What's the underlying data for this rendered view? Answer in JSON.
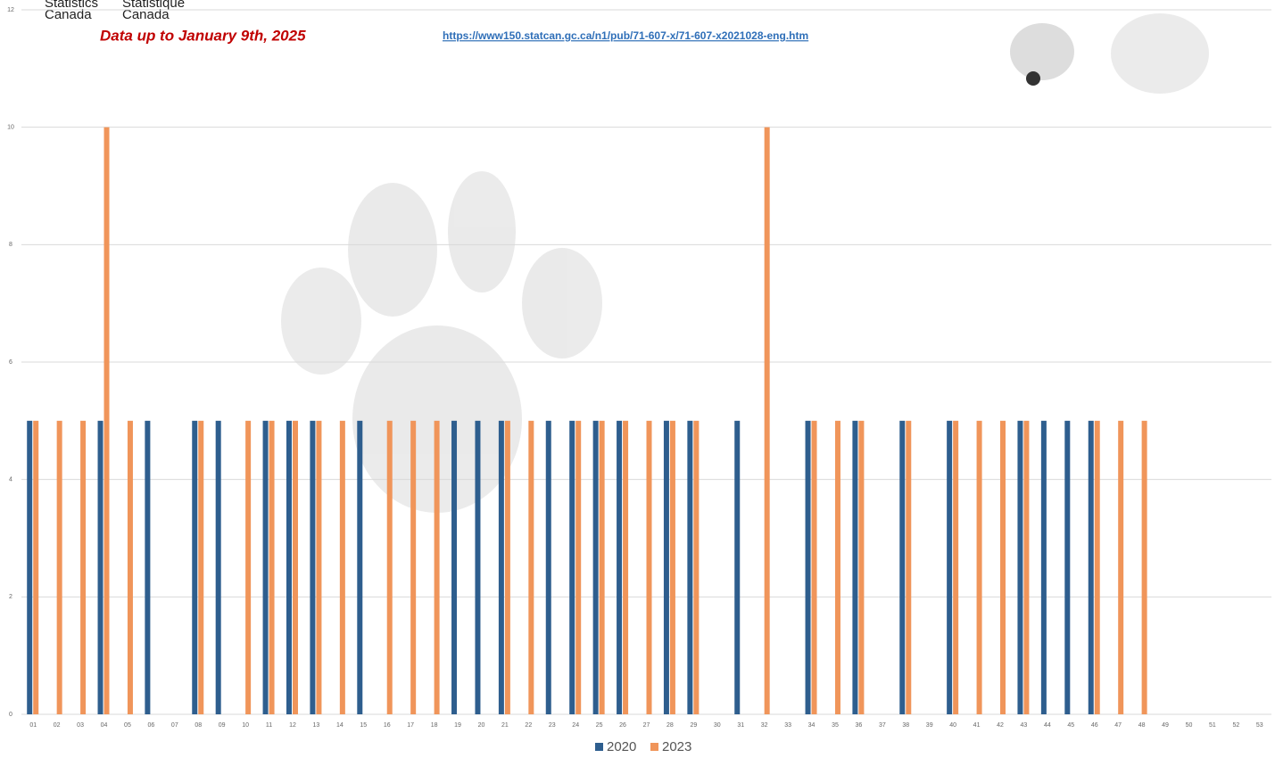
{
  "chart_data": {
    "type": "bar",
    "annotations": [
      "Statistics",
      "Canada",
      "Statistique",
      "Canada",
      "Data up to January 9th, 2025",
      "https://www150.statcan.gc.ca/n1/pub/71-607-x/71-607-x2021028-eng.htm"
    ],
    "categories": [
      "01",
      "02",
      "03",
      "04",
      "05",
      "06",
      "07",
      "08",
      "09",
      "10",
      "11",
      "12",
      "13",
      "14",
      "15",
      "16",
      "17",
      "18",
      "19",
      "20",
      "21",
      "22",
      "23",
      "24",
      "25",
      "26",
      "27",
      "28",
      "29",
      "30",
      "31",
      "32",
      "33",
      "34",
      "35",
      "36",
      "37",
      "38",
      "39",
      "40",
      "41",
      "42",
      "43",
      "44",
      "45",
      "46",
      "47",
      "48",
      "49",
      "50",
      "51",
      "52",
      "53"
    ],
    "series": [
      {
        "name": "2020",
        "color": "#2e5e8e",
        "values": [
          5,
          0,
          0,
          5,
          0,
          5,
          0,
          5,
          5,
          0,
          5,
          5,
          5,
          0,
          5,
          0,
          0,
          0,
          5,
          5,
          5,
          0,
          5,
          5,
          5,
          5,
          0,
          5,
          5,
          0,
          5,
          0,
          0,
          5,
          0,
          5,
          0,
          5,
          0,
          5,
          0,
          0,
          5,
          5,
          5,
          5,
          0,
          0,
          0,
          0,
          0,
          0,
          0
        ]
      },
      {
        "name": "2023",
        "color": "#f0955a",
        "values": [
          5,
          5,
          5,
          10,
          5,
          0,
          0,
          5,
          0,
          5,
          5,
          5,
          5,
          5,
          0,
          5,
          5,
          5,
          0,
          0,
          5,
          5,
          0,
          5,
          5,
          5,
          5,
          5,
          5,
          0,
          0,
          10,
          0,
          5,
          5,
          5,
          0,
          5,
          0,
          5,
          5,
          5,
          5,
          0,
          0,
          5,
          5,
          5,
          0,
          0,
          0,
          0,
          0
        ]
      }
    ],
    "ylim": [
      0,
      12
    ],
    "yticks": [
      0,
      2,
      4,
      6,
      8,
      10,
      12
    ],
    "grid": true,
    "legend": "bottom"
  }
}
